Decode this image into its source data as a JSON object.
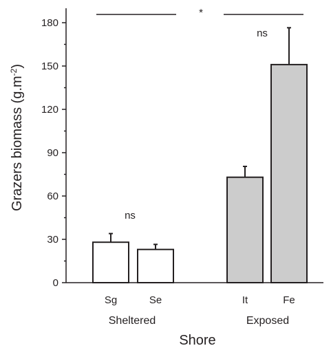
{
  "chart_data": {
    "type": "bar",
    "xlabel": "Shore",
    "ylabel": "Grazers biomass (g.m",
    "ylabel_sup": "-2",
    "ylabel_suffix": ")",
    "ylim": [
      0,
      190
    ],
    "yticks": [
      0,
      30,
      60,
      90,
      120,
      150,
      180
    ],
    "grid": false,
    "groups": [
      {
        "label": "Sheltered",
        "fill": "#ffffff",
        "categories": [
          "Sg",
          "Se"
        ],
        "values": [
          28,
          23
        ],
        "errors": [
          6,
          3.5
        ],
        "annotation": "ns"
      },
      {
        "label": "Exposed",
        "fill": "#cccccc",
        "categories": [
          "It",
          "Fe"
        ],
        "values": [
          73,
          151
        ],
        "errors": [
          7.5,
          25.5
        ],
        "annotation": "ns"
      }
    ],
    "comparison_annotation": "*"
  },
  "colors": {
    "axis": "#231f20",
    "bar_outline": "#231f20",
    "sheltered_fill": "#ffffff",
    "exposed_fill": "#cccccc"
  }
}
